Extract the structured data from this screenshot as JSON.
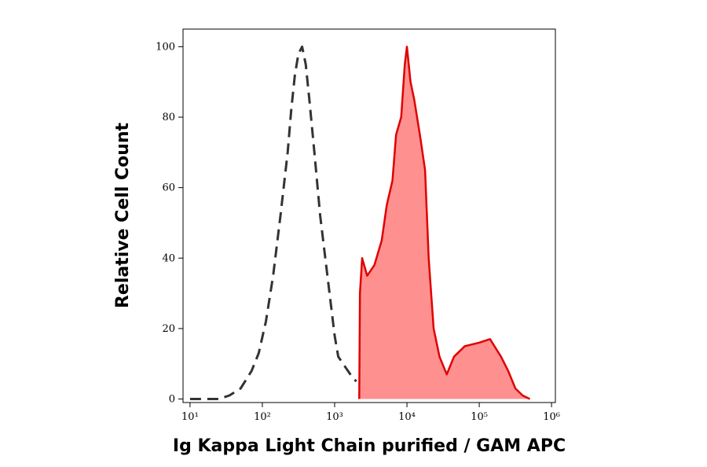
{
  "chart_data": {
    "type": "histogram-overlay",
    "x_label": "Ig Kappa Light Chain purified / GAM APC",
    "y_label": "Relative Cell Count",
    "x_log": true,
    "xlim": [
      8,
      1130000
    ],
    "ylim": [
      -1,
      105
    ],
    "xticks": [
      {
        "value": 10,
        "label": "10¹"
      },
      {
        "value": 100,
        "label": "10²"
      },
      {
        "value": 1000,
        "label": "10³"
      },
      {
        "value": 10000,
        "label": "10⁴"
      },
      {
        "value": 100000,
        "label": "10⁵"
      },
      {
        "value": 1000000,
        "label": "10⁶"
      }
    ],
    "yticks": [
      0,
      20,
      40,
      60,
      80,
      100
    ],
    "series": [
      {
        "color": "#333333",
        "style": "dashed",
        "filled": false,
        "x": [
          10,
          25,
          35,
          50,
          71,
          89,
          112,
          141,
          178,
          224,
          251,
          282,
          316,
          355,
          398,
          447,
          525,
          631,
          794,
          1000,
          1122,
          1413,
          1778,
          2000
        ],
        "values": [
          0,
          0,
          1,
          3,
          8,
          13,
          22,
          35,
          52,
          70,
          82,
          92,
          98,
          100,
          95,
          85,
          70,
          52,
          35,
          18,
          12,
          9,
          6,
          5
        ]
      },
      {
        "color": "#e00000",
        "fill": "#ff9090",
        "style": "solid",
        "filled": true,
        "x": [
          2190,
          2240,
          2400,
          2820,
          3550,
          4470,
          5250,
          6310,
          7080,
          8320,
          9330,
          10000,
          11200,
          12600,
          15100,
          17800,
          20000,
          23400,
          28200,
          35500,
          44700,
          63100,
          100000,
          141000,
          200000,
          251000,
          316000,
          398000,
          501000
        ],
        "values": [
          0,
          30,
          40,
          35,
          38,
          45,
          55,
          62,
          75,
          80,
          95,
          100,
          90,
          85,
          75,
          65,
          40,
          20,
          12,
          7,
          12,
          15,
          16,
          17,
          12,
          8,
          3,
          1,
          0
        ]
      }
    ]
  }
}
